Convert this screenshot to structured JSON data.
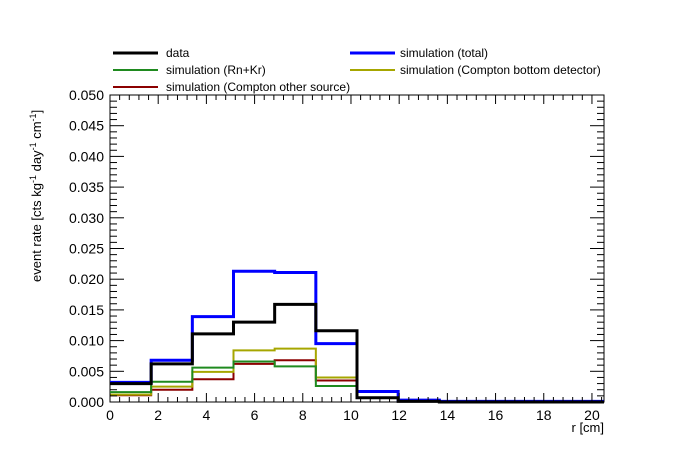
{
  "chart_data": {
    "type": "line",
    "style": "histogram-step",
    "xlabel": "r [cm]",
    "ylabel_parts": {
      "prefix": "event rate [cts kg",
      "sup1": "-1",
      "mid1": " day",
      "sup2": "-1",
      "mid2": " cm",
      "sup3": "-1",
      "suffix": "]"
    },
    "xlim": [
      0,
      20.5
    ],
    "ylim": [
      0,
      0.05
    ],
    "xticks": [
      0,
      2,
      4,
      6,
      8,
      10,
      12,
      14,
      16,
      18,
      20
    ],
    "xtick_labels": [
      "0",
      "2",
      "4",
      "6",
      "8",
      "10",
      "12",
      "14",
      "16",
      "18",
      "20"
    ],
    "yticks": [
      0,
      0.005,
      0.01,
      0.015,
      0.02,
      0.025,
      0.03,
      0.035,
      0.04,
      0.045,
      0.05
    ],
    "ytick_labels": [
      "0.000",
      "0.005",
      "0.010",
      "0.015",
      "0.020",
      "0.025",
      "0.030",
      "0.035",
      "0.040",
      "0.045",
      "0.050"
    ],
    "bin_edges": [
      0,
      1.708,
      3.417,
      5.125,
      6.833,
      8.542,
      10.25,
      11.958,
      13.667,
      15.375,
      17.083,
      18.792,
      20.5
    ],
    "grid": false,
    "legend_position": "top",
    "series": [
      {
        "name": "data",
        "color": "#000000",
        "width": 3,
        "values": [
          0.003,
          0.0062,
          0.0111,
          0.013,
          0.0159,
          0.0116,
          0.0007,
          0.0001,
          0.0,
          0.0,
          0.0,
          0.0
        ]
      },
      {
        "name": "simulation (total)",
        "color": "#0000ff",
        "width": 3,
        "values": [
          0.0032,
          0.0068,
          0.0139,
          0.0213,
          0.0211,
          0.0095,
          0.0017,
          0.0003,
          0.0001,
          0.0001,
          0.0001,
          0.0001
        ]
      },
      {
        "name": "simulation (Rn+Kr)",
        "color": "#1f8a1f",
        "width": 2,
        "values": [
          0.0016,
          0.0033,
          0.0056,
          0.0066,
          0.0058,
          0.0026,
          0.0007,
          0.0001,
          0.0,
          0.0,
          0.0,
          0.0
        ]
      },
      {
        "name": "simulation (Compton bottom detector)",
        "color": "#a6a600",
        "width": 2,
        "values": [
          0.0012,
          0.0025,
          0.0049,
          0.0084,
          0.0087,
          0.004,
          0.0007,
          0.0001,
          0.0,
          0.0,
          0.0,
          0.0
        ]
      },
      {
        "name": "simulation (Compton other source)",
        "color": "#8b0000",
        "width": 2,
        "values": [
          0.0011,
          0.002,
          0.0037,
          0.0062,
          0.0068,
          0.0035,
          0.0007,
          0.0001,
          0.0,
          0.0,
          0.0,
          0.0
        ]
      }
    ]
  }
}
